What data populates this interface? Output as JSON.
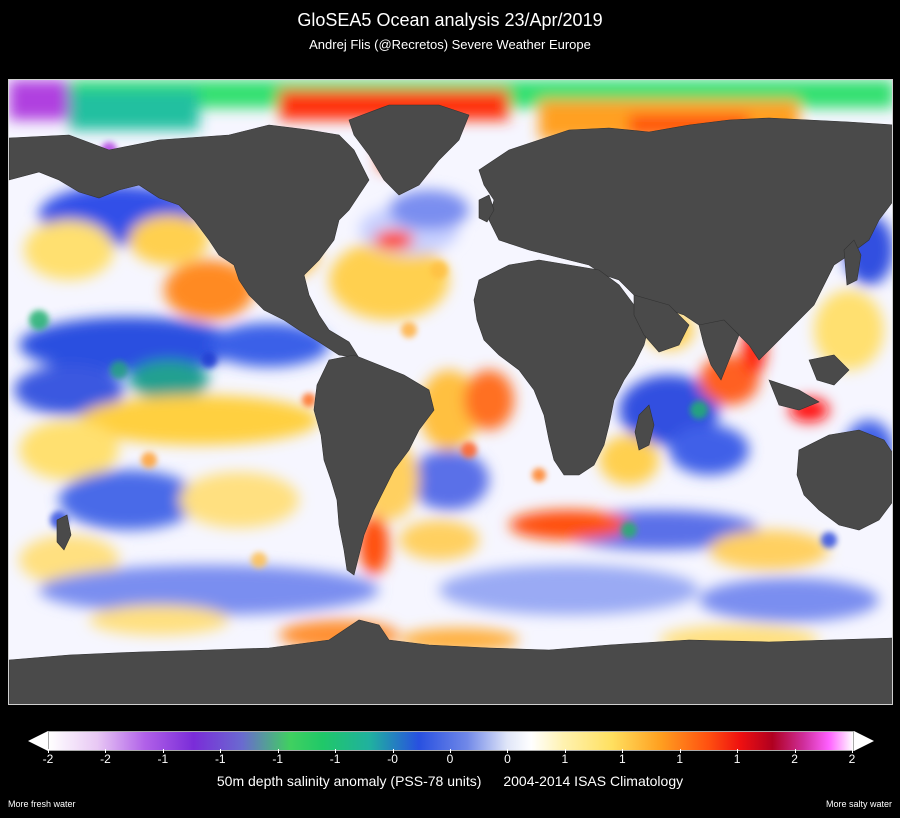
{
  "header": {
    "title": "GloSEA5 Ocean analysis 23/Apr/2019",
    "subtitle": "Andrej Flis (@Recretos)  Severe Weather Europe"
  },
  "map": {
    "type": "world salinity anomaly map",
    "land_color": "#4a4a4a",
    "ocean_base_color": "#ffffff",
    "patches": [
      {
        "region": "arctic-fresh",
        "color": "#30e070"
      },
      {
        "region": "arctic-purple",
        "color": "#b040e0"
      },
      {
        "region": "arctic-salty",
        "color": "#ff3010"
      },
      {
        "region": "pacific-fresh",
        "color": "#2c50e0"
      },
      {
        "region": "tropics-salty",
        "color": "#ffd040"
      },
      {
        "region": "southern-ocean-fresh",
        "color": "#7a8ef0"
      },
      {
        "region": "boundary-salty",
        "color": "#ff6a10"
      }
    ]
  },
  "colorbar": {
    "ticks": [
      "-2",
      "-2",
      "-1",
      "-1",
      "-1",
      "-1",
      "-0",
      "0",
      "0",
      "1",
      "1",
      "1",
      "1",
      "2",
      "2"
    ],
    "min": -2,
    "max": 2
  },
  "caption": {
    "variable": "50m depth salinity anomaly (PSS-78 units)",
    "climatology": "2004-2014 ISAS Climatology"
  },
  "notes": {
    "left": "More fresh water",
    "right": "More salty water"
  }
}
